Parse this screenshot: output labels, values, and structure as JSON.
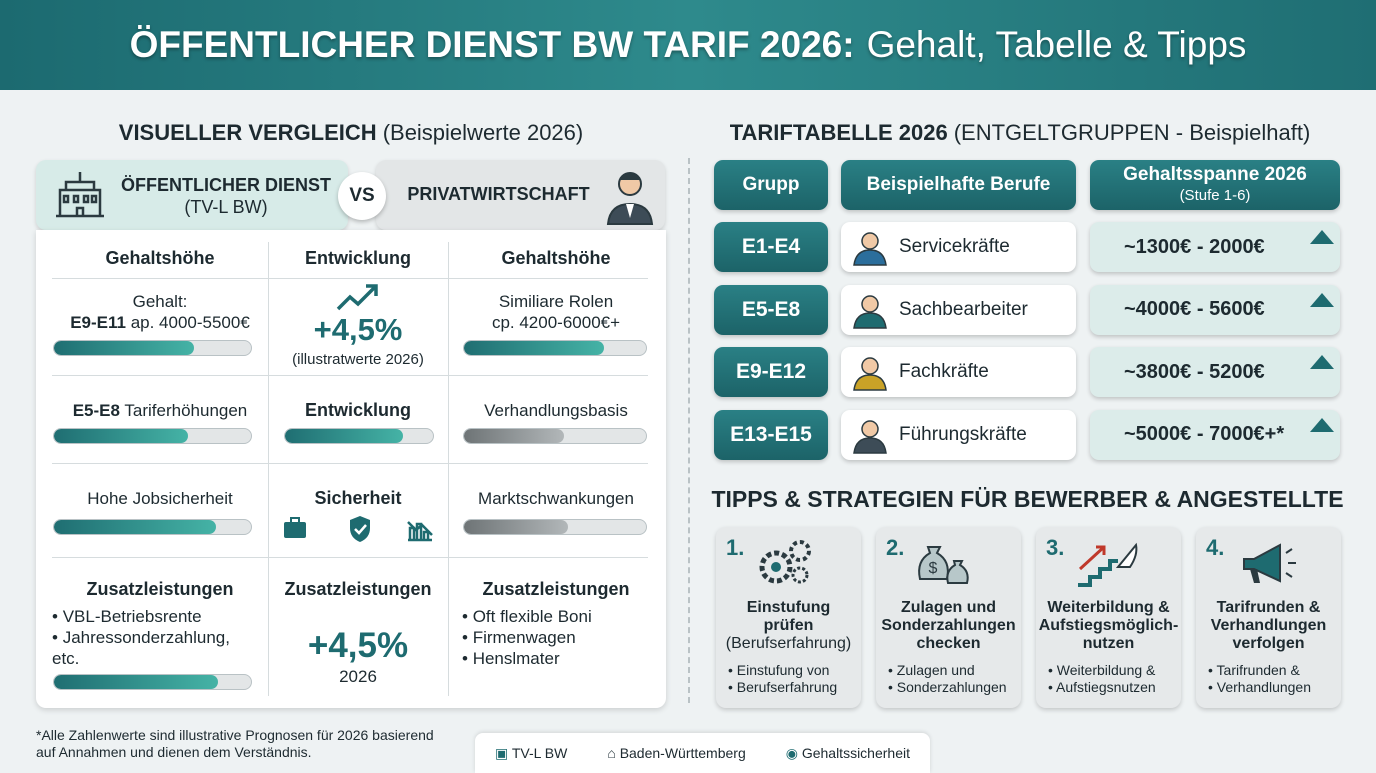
{
  "header": {
    "title_bold": "ÖFFENTLICHER DIENST BW TARIF 2026:",
    "title_rest": "Gehalt, Tabelle & Tipps"
  },
  "comparison": {
    "title": "VISUELLER VERGLEICH",
    "subtitle": "(Beispielwerte 2026)",
    "public": {
      "title": "ÖFFENTLICHER DIENST",
      "subtitle": "(TV-L BW)"
    },
    "vs": "VS",
    "private": {
      "title": "PRIVATWIRTSCHAFT"
    },
    "columns": [
      "Gehaltshöhe",
      "Entwicklung",
      "Gehaltshöhe"
    ],
    "rows": [
      {
        "public": {
          "line1": "Gehalt:",
          "bold": "E9-E11",
          "text": "ap. 4000-5500€"
        },
        "development": {
          "big": "+4,5%",
          "small": "(illustratwerte 2026)"
        },
        "private": {
          "line1": "Similiare Rolen",
          "line2": "cp. 4200-6000€+"
        }
      },
      {
        "public": {
          "bold": "E5-E8",
          "text": "Tariferhöhungen"
        },
        "development": {
          "label": "Entwicklung"
        },
        "private": {
          "text": "Verhandlungsbasis"
        }
      },
      {
        "public": {
          "text": "Hohe Jobsicherheit"
        },
        "development": {
          "label": "Sicherheit"
        },
        "private": {
          "text": "Marktschwankungen"
        }
      },
      {
        "public": {
          "label": "Zusatzleistungen",
          "bullets": [
            "VBL-Betriebsrente",
            "Jahressonderzahlung, etc."
          ]
        },
        "development": {
          "label": "Zusatzleistungen",
          "big": "+4,5%",
          "small": "2026"
        },
        "private": {
          "label": "Zusatzleistungen",
          "bullets": [
            "Oft flexible Boni",
            "Firmenwagen",
            "Henslmater"
          ]
        }
      }
    ]
  },
  "tariff": {
    "title": "TARIFTABELLE 2026",
    "subtitle": "(ENTGELTGRUPPEN - Beispielhaft)",
    "headers": [
      "Grupp",
      "Beispielhafte Berufe",
      "Gehaltsspanne 2026"
    ],
    "range_note": "(Stufe 1-6)",
    "rows": [
      [
        "E1-E4",
        "Servicekräfte",
        "~1300€ - 2000€"
      ],
      [
        "E5-E8",
        "Sachbearbeiter",
        "~4000€ - 5600€"
      ],
      [
        "E9-E12",
        "Fachkräfte",
        "~3800€ - 5200€"
      ],
      [
        "E13-E15",
        "Führungskräfte",
        "~5000€ - 7000€+*"
      ]
    ]
  },
  "tips": {
    "title": "TIPPS & STRATEGIEN FÜR BEWERBER & ANGESTELLTE",
    "items": [
      {
        "number": "1.",
        "title": [
          "Einstufung",
          "prüfen"
        ],
        "note": "(Berufserfahrung)",
        "bullets": [
          "Einstufung von",
          "Berufserfahrung"
        ]
      },
      {
        "number": "2.",
        "title": [
          "Zulagen und",
          "Sonderzahlungen",
          "checken"
        ],
        "bullets": [
          "Zulagen und",
          "Sonderzahlungen"
        ]
      },
      {
        "number": "3.",
        "title": [
          "Weiterbildung &",
          "Aufstiegsmöglich-",
          "nutzen"
        ],
        "bullets": [
          "Weiterbildung &",
          "Aufstiegsnutzen"
        ]
      },
      {
        "number": "4.",
        "title": [
          "Tarifrunden &",
          "Verhandlungen",
          "verfolgen"
        ],
        "bullets": [
          "Tarifrunden &",
          "Verhandlungen"
        ]
      }
    ]
  },
  "footnote": [
    "*Alle Zahlenwerte sind illustrative Prognosen für 2026 basierend",
    "auf Annahmen und dienen dem Verständnis."
  ],
  "legend": [
    "TV-L BW",
    "Baden-Württemberg",
    "Gehaltssicherheit"
  ]
}
